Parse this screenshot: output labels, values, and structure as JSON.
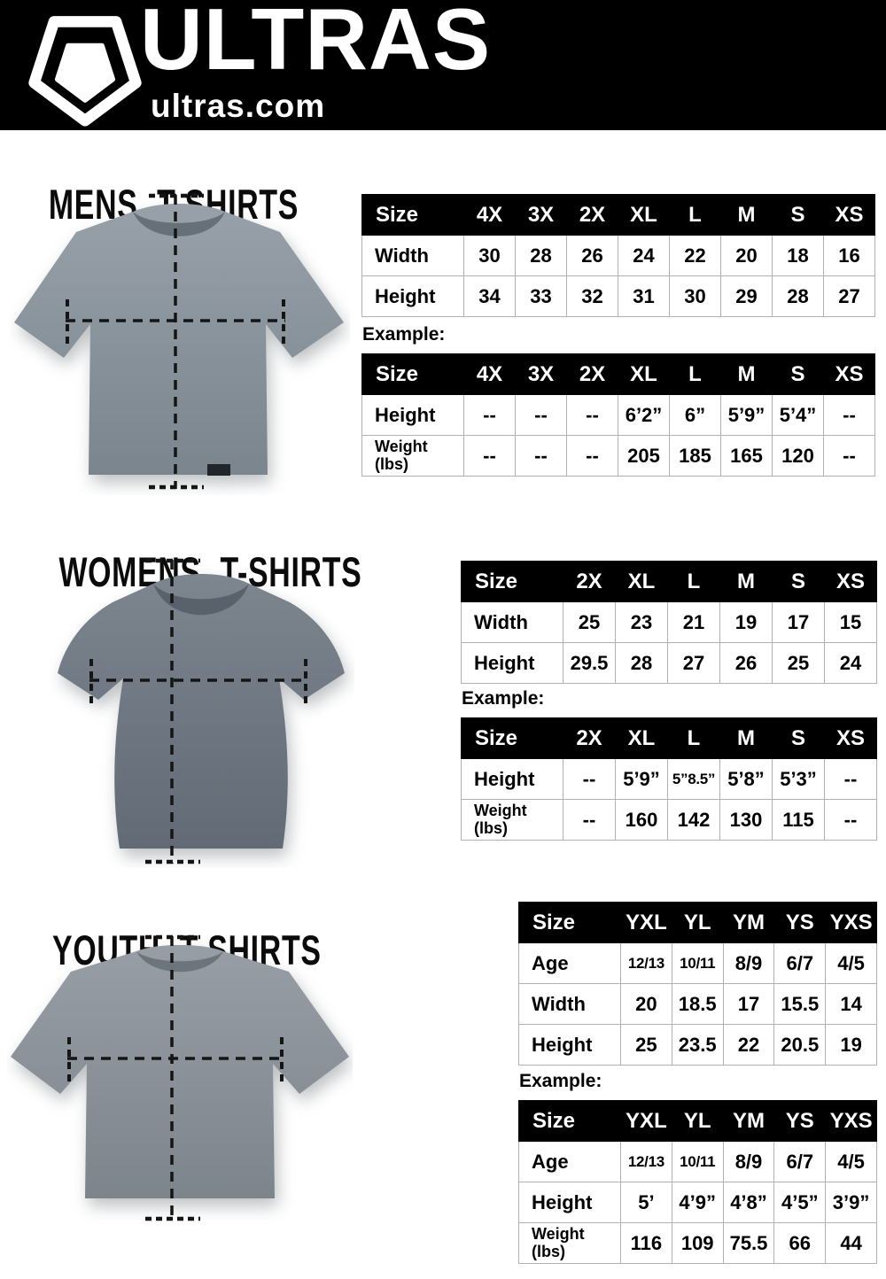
{
  "header": {
    "brand": "ULTRAS",
    "domain": "ultras.com",
    "logo_icon": "pentagon-shield-icon"
  },
  "colors": {
    "header_bg": "#000000",
    "table_header_bg": "#000000",
    "table_header_text": "#ffffff",
    "table_border": "#b0b0b0",
    "dash_line": "#151515",
    "mens_shirt": "#8a939b",
    "womens_shirt": "#6f7882",
    "youth_shirt": "#8a9199"
  },
  "sections": [
    {
      "title": "MENS T-SHIRTS",
      "shirt_image": "mens-gray-tshirt-photo",
      "size_table": {
        "columns": [
          "Size",
          "4X",
          "3X",
          "2X",
          "XL",
          "L",
          "M",
          "S",
          "XS"
        ],
        "rows": [
          {
            "label": "Width",
            "values": [
              "30",
              "28",
              "26",
              "24",
              "22",
              "20",
              "18",
              "16"
            ]
          },
          {
            "label": "Height",
            "values": [
              "34",
              "33",
              "32",
              "31",
              "30",
              "29",
              "28",
              "27"
            ]
          }
        ]
      },
      "example_label": "Example:",
      "example_table": {
        "columns": [
          "Size",
          "4X",
          "3X",
          "2X",
          "XL",
          "L",
          "M",
          "S",
          "XS"
        ],
        "rows": [
          {
            "label": "Height",
            "values": [
              "--",
              "--",
              "--",
              "6’2”",
              "6”",
              "5’9”",
              "5’4”",
              "--"
            ]
          },
          {
            "label": "Weight (lbs)",
            "values": [
              "--",
              "--",
              "--",
              "205",
              "185",
              "165",
              "120",
              "--"
            ]
          }
        ]
      }
    },
    {
      "title": "WOMENS T-SHIRTS",
      "shirt_image": "womens-gray-tshirt-photo",
      "size_table": {
        "columns": [
          "Size",
          "2X",
          "XL",
          "L",
          "M",
          "S",
          "XS"
        ],
        "rows": [
          {
            "label": "Width",
            "values": [
              "25",
              "23",
              "21",
              "19",
              "17",
              "15"
            ]
          },
          {
            "label": "Height",
            "values": [
              "29.5",
              "28",
              "27",
              "26",
              "25",
              "24"
            ]
          }
        ]
      },
      "example_label": "Example:",
      "example_table": {
        "columns": [
          "Size",
          "2X",
          "XL",
          "L",
          "M",
          "S",
          "XS"
        ],
        "rows": [
          {
            "label": "Height",
            "values": [
              "--",
              "5’9”",
              "5”8.5”",
              "5’8”",
              "5’3”",
              "--"
            ]
          },
          {
            "label": "Weight (lbs)",
            "values": [
              "--",
              "160",
              "142",
              "130",
              "115",
              "--"
            ]
          }
        ]
      }
    },
    {
      "title": "YOUTH T-SHIRTS",
      "shirt_image": "youth-gray-tshirt-photo",
      "size_table": {
        "columns": [
          "Size",
          "YXL",
          "YL",
          "YM",
          "YS",
          "YXS"
        ],
        "rows": [
          {
            "label": "Age",
            "values": [
              "12/13",
              "10/11",
              "8/9",
              "6/7",
              "4/5"
            ]
          },
          {
            "label": "Width",
            "values": [
              "20",
              "18.5",
              "17",
              "15.5",
              "14"
            ]
          },
          {
            "label": "Height",
            "values": [
              "25",
              "23.5",
              "22",
              "20.5",
              "19"
            ]
          }
        ]
      },
      "example_label": "Example:",
      "example_table": {
        "columns": [
          "Size",
          "YXL",
          "YL",
          "YM",
          "YS",
          "YXS"
        ],
        "rows": [
          {
            "label": "Age",
            "values": [
              "12/13",
              "10/11",
              "8/9",
              "6/7",
              "4/5"
            ]
          },
          {
            "label": "Height",
            "values": [
              "5’",
              "4’9”",
              "4’8”",
              "4’5”",
              "3’9”"
            ]
          },
          {
            "label": "Weight (lbs)",
            "values": [
              "116",
              "109",
              "75.5",
              "66",
              "44"
            ]
          }
        ]
      }
    }
  ]
}
